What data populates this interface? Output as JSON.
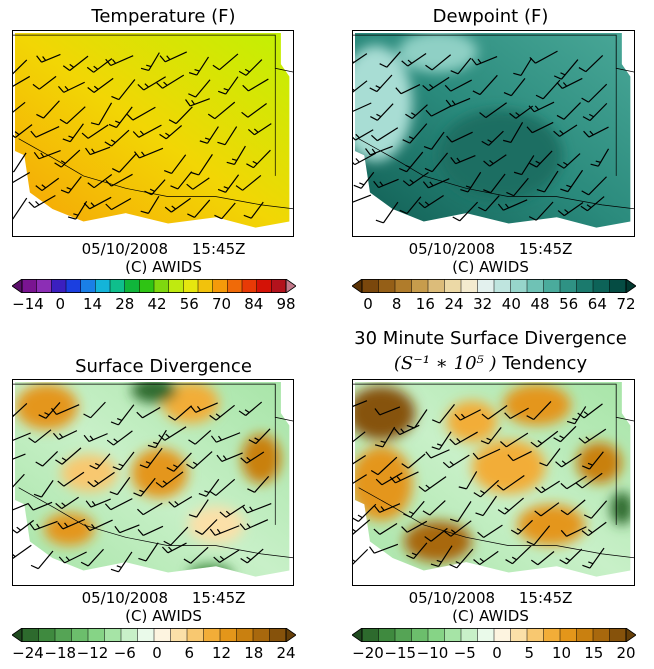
{
  "panels": [
    {
      "id": "temperature",
      "title": "Temperature (F)",
      "date": "05/10/2008",
      "time": "15:45Z",
      "credit": "(C) AWIDS",
      "ticks": [
        "−14",
        "0",
        "14",
        "28",
        "42",
        "56",
        "70",
        "84",
        "98"
      ],
      "colors": [
        "#5b0f6b",
        "#7a1491",
        "#8c2eb5",
        "#3b1fbf",
        "#1b3fe0",
        "#1a7fe6",
        "#14b4d9",
        "#0fbf8c",
        "#10b53b",
        "#2fc414",
        "#7fd80f",
        "#bfea10",
        "#e6e60f",
        "#f2c20c",
        "#f59a0a",
        "#f06a08",
        "#e83a06",
        "#d41206",
        "#b3121c",
        "#c2788a"
      ]
    },
    {
      "id": "dewpoint",
      "title": "Dewpoint (F)",
      "date": "05/10/2008",
      "time": "15:45Z",
      "credit": "(C) AWIDS",
      "ticks": [
        "0",
        "8",
        "16",
        "24",
        "32",
        "40",
        "48",
        "56",
        "64",
        "72"
      ],
      "colors": [
        "#5a3205",
        "#7a470c",
        "#955f17",
        "#b07c2b",
        "#c79c4c",
        "#dcbc7a",
        "#ecd9a6",
        "#f4ebcf",
        "#e3f1ee",
        "#bfe5df",
        "#97d5cb",
        "#6fc2b5",
        "#4aab9c",
        "#2f9284",
        "#1b7a6d",
        "#0d6358",
        "#054c43",
        "#02382f"
      ]
    },
    {
      "id": "divergence",
      "title": "Surface Divergence",
      "date": "05/10/2008",
      "time": "15:45Z",
      "credit": "(C) AWIDS",
      "ticks": [
        "−24",
        "−18",
        "−12",
        "−6",
        "0",
        "6",
        "12",
        "18",
        "24"
      ],
      "colors": [
        "#1f4a1f",
        "#2d6a2d",
        "#3f8a3f",
        "#55a455",
        "#6cbe6c",
        "#86d486",
        "#a6e4a6",
        "#c8f0c8",
        "#eafaea",
        "#fdf4e0",
        "#fbe0a8",
        "#f8c870",
        "#f2ad38",
        "#e4961a",
        "#c98010",
        "#a8680d",
        "#86520b",
        "#663f08"
      ]
    },
    {
      "id": "divergence-tendency",
      "title_line1": "30 Minute Surface Divergence",
      "title_math": "(S⁻¹ ∗ 10⁵ )",
      "title_rest": "Tendency",
      "date": "05/10/2008",
      "time": "15:45Z",
      "credit": "(C) AWIDS",
      "ticks": [
        "−20",
        "−15",
        "−10",
        "−5",
        "0",
        "5",
        "10",
        "15",
        "20"
      ],
      "colors": [
        "#1f4a1f",
        "#2d6a2d",
        "#3f8a3f",
        "#55a455",
        "#6cbe6c",
        "#86d486",
        "#a6e4a6",
        "#c8f0c8",
        "#eafaea",
        "#fdf4e0",
        "#fbe0a8",
        "#f8c870",
        "#f2ad38",
        "#e4961a",
        "#c98010",
        "#a8680d",
        "#86520b",
        "#663f08"
      ]
    }
  ]
}
